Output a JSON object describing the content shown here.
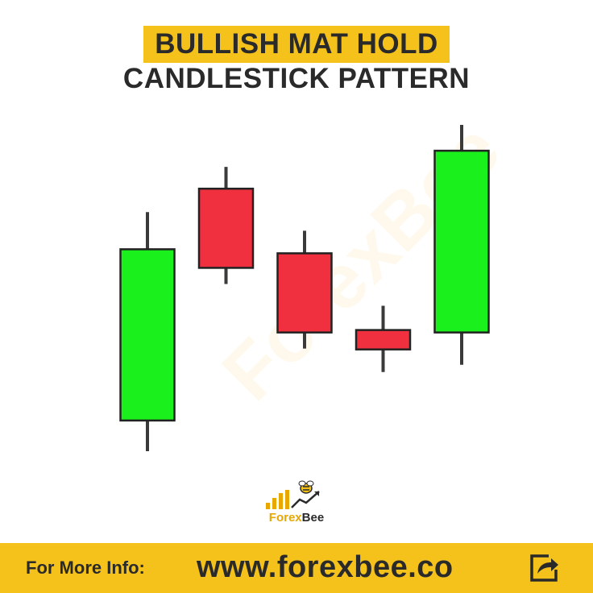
{
  "title": {
    "line1": "BULLISH MAT HOLD",
    "line2": "CANDLESTICK PATTERN"
  },
  "watermark": "ForexBee",
  "brand": {
    "forex": "Forex",
    "bee": "Bee"
  },
  "footer": {
    "label": "For More Info:",
    "url": "www.forexbee.co",
    "icon": "share-icon"
  },
  "colors": {
    "accent": "#f5c21b",
    "bullish": "#19f01c",
    "bearish": "#f0303f",
    "wick": "#3a3a3a",
    "text": "#2a2a2a"
  },
  "chart_data": {
    "type": "candlestick",
    "title": "BULLISH MAT HOLD CANDLESTICK PATTERN",
    "xlabel": "",
    "ylabel": "",
    "grid": false,
    "candles": [
      {
        "direction": "bullish",
        "open": 38,
        "close": 250,
        "high": 296,
        "low": 0
      },
      {
        "direction": "bearish",
        "open": 325,
        "close": 227,
        "high": 352,
        "low": 207
      },
      {
        "direction": "bearish",
        "open": 245,
        "close": 147,
        "high": 273,
        "low": 127
      },
      {
        "direction": "bearish",
        "open": 150,
        "close": 126,
        "high": 180,
        "low": 98
      },
      {
        "direction": "bullish",
        "open": 147,
        "close": 372,
        "high": 404,
        "low": 107
      }
    ],
    "ylim": [
      0,
      404
    ]
  }
}
